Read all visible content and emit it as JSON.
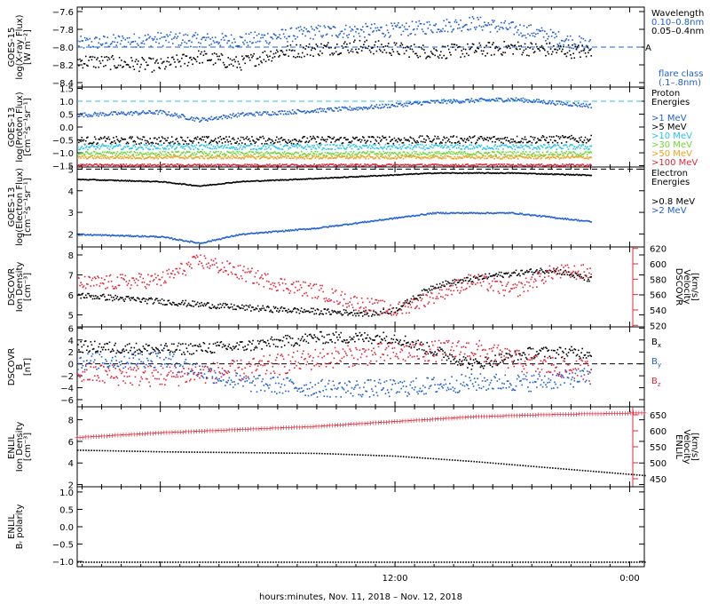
{
  "colors": {
    "black": "#000000",
    "blue": "#1f5fd1",
    "cyan": "#27c3e8",
    "green": "#6fd43a",
    "orange": "#e8a21d",
    "red": "#e0283c",
    "darkred": "#c81e28"
  },
  "chart_data": {
    "type": "scatter",
    "xlabel": "hours:minutes, Nov. 11, 2018 – Nov. 12, 2018",
    "x_ticks": [
      "12:00",
      "0:00"
    ],
    "xlim_hours": [
      -4.25,
      24.75
    ],
    "data_end_hours": 22.0,
    "panels": [
      {
        "id": "goes15-xray",
        "ylabel": [
          "GOES-15",
          "log(X-ray Flux)",
          "[W m⁻²]"
        ],
        "ylim": [
          -8.45,
          -7.55
        ],
        "yticks": [
          -8.4,
          -8.2,
          -8.0,
          -7.8,
          -7.6
        ],
        "ytick_labels": [
          "−8.4",
          "−8.2",
          "−8.0",
          "−7.8",
          "−7.6"
        ],
        "legend_title": "Wavelength",
        "series": [
          {
            "name": "0.10–0.8nm",
            "color": "blue",
            "knots": [
              [
                -4,
                -7.95
              ],
              [
                0,
                -7.9
              ],
              [
                4,
                -7.92
              ],
              [
                8,
                -7.82
              ],
              [
                12,
                -7.8
              ],
              [
                16,
                -7.72
              ],
              [
                19,
                -7.82
              ],
              [
                22,
                -7.98
              ]
            ],
            "scatter": 0.08
          },
          {
            "name": "0.05–0.4nm",
            "color": "black",
            "knots": [
              [
                -4,
                -8.15
              ],
              [
                0,
                -8.2
              ],
              [
                2,
                -8.1
              ],
              [
                4,
                -8.18
              ],
              [
                6,
                -8.05
              ],
              [
                10,
                -7.98
              ],
              [
                14,
                -8.05
              ],
              [
                18,
                -8.0
              ],
              [
                22,
                -8.05
              ]
            ],
            "scatter": 0.08
          }
        ],
        "reference_line": {
          "value": -8.0,
          "label": "A",
          "color": "blue"
        },
        "note": "flare class\n(.1–.8nm)"
      },
      {
        "id": "goes13-proton",
        "ylabel": [
          "GOES-13",
          "log(Proton Flux)",
          "[cm⁻²s⁻¹sr⁻¹]"
        ],
        "ylim": [
          -1.55,
          1.55
        ],
        "yticks": [
          -1.5,
          -1.0,
          -0.5,
          0.0,
          0.5,
          1.0,
          1.5
        ],
        "ytick_labels": [
          "−1.5",
          "−1.0",
          "−0.5",
          "0.0",
          "0.5",
          "1.0",
          "1.5"
        ],
        "legend_title": "Proton\nEnergies",
        "series": [
          {
            "name": ">1 MeV",
            "color": "blue",
            "knots": [
              [
                -4,
                0.5
              ],
              [
                0,
                0.6
              ],
              [
                2,
                0.3
              ],
              [
                4,
                0.5
              ],
              [
                10,
                0.75
              ],
              [
                14,
                1.0
              ],
              [
                18,
                1.1
              ],
              [
                22,
                0.85
              ]
            ],
            "scatter": 0.08
          },
          {
            "name": ">5 MeV",
            "color": "black",
            "knots": [
              [
                -4,
                -0.5
              ],
              [
                22,
                -0.45
              ]
            ],
            "scatter": 0.15
          },
          {
            "name": ">10 MeV",
            "color": "cyan",
            "knots": [
              [
                -4,
                -0.75
              ],
              [
                22,
                -0.75
              ]
            ],
            "scatter": 0.1
          },
          {
            "name": ">30 MeV",
            "color": "green",
            "knots": [
              [
                -4,
                -1.0
              ],
              [
                22,
                -1.0
              ]
            ],
            "scatter": 0.08
          },
          {
            "name": ">50 MeV",
            "color": "orange",
            "knots": [
              [
                -4,
                -1.15
              ],
              [
                22,
                -1.15
              ]
            ],
            "scatter": 0.06
          },
          {
            "name": ">100 MeV",
            "color": "red",
            "knots": [
              [
                -4,
                -1.45
              ],
              [
                22,
                -1.45
              ]
            ],
            "scatter": 0.04
          }
        ],
        "reference_line": {
          "value": 1.0,
          "color": "cyan"
        }
      },
      {
        "id": "goes13-electron",
        "ylabel": [
          "GOES-13",
          "log(Electron Flux)",
          "[cm⁻²s⁻¹sr⁻¹]"
        ],
        "ylim": [
          1.4,
          5.1
        ],
        "yticks": [
          2,
          3,
          4,
          5
        ],
        "ytick_labels": [
          "2",
          "3",
          "4",
          "5"
        ],
        "legend_title": "Electron\nEnergies",
        "series": [
          {
            "name": ">0.8 MeV",
            "color": "black",
            "knots": [
              [
                -4,
                4.55
              ],
              [
                0,
                4.45
              ],
              [
                2,
                4.25
              ],
              [
                4,
                4.45
              ],
              [
                8,
                4.6
              ],
              [
                14,
                4.85
              ],
              [
                18,
                4.85
              ],
              [
                22,
                4.75
              ]
            ],
            "scatter": 0.02
          },
          {
            "name": ">2 MeV",
            "color": "blue",
            "knots": [
              [
                -4,
                2.0
              ],
              [
                0,
                1.9
              ],
              [
                2,
                1.6
              ],
              [
                4,
                2.0
              ],
              [
                8,
                2.3
              ],
              [
                14,
                3.0
              ],
              [
                18,
                3.0
              ],
              [
                22,
                2.6
              ]
            ],
            "scatter": 0.03
          }
        ],
        "reference_line": {
          "value": 5.0,
          "color": "black"
        }
      },
      {
        "id": "dscovr-plasma",
        "ylabel": [
          "DSCOVR",
          "Ion Density",
          "[cm⁻³]"
        ],
        "ylim": [
          4.4,
          8.4
        ],
        "yticks": [
          5,
          6,
          7,
          8
        ],
        "ytick_labels": [
          "5",
          "6",
          "7",
          "8"
        ],
        "right_ylabel": [
          "DSCOVR",
          "Velocity",
          "[km/s]"
        ],
        "right_ylim": [
          518,
          622
        ],
        "right_yticks": [
          520,
          540,
          560,
          580,
          600,
          620
        ],
        "right_ytick_labels": [
          "520",
          "540",
          "560",
          "580",
          "600",
          "620"
        ],
        "series": [
          {
            "name": "density",
            "color": "black",
            "knots": [
              [
                -4,
                6.0
              ],
              [
                0,
                5.7
              ],
              [
                4,
                5.4
              ],
              [
                8,
                5.2
              ],
              [
                11,
                5.1
              ],
              [
                12,
                5.3
              ],
              [
                14,
                6.5
              ],
              [
                17,
                7.0
              ],
              [
                20,
                7.3
              ],
              [
                22,
                6.8
              ]
            ],
            "scatter": 0.15
          },
          {
            "name": "velocity",
            "color": "red",
            "axis": "right",
            "knots": [
              [
                -4,
                575
              ],
              [
                0,
                580
              ],
              [
                2,
                605
              ],
              [
                4,
                590
              ],
              [
                6,
                575
              ],
              [
                8,
                565
              ],
              [
                10,
                550
              ],
              [
                12,
                540
              ],
              [
                14,
                560
              ],
              [
                16,
                580
              ],
              [
                18,
                565
              ],
              [
                20,
                590
              ],
              [
                22,
                590
              ]
            ],
            "scatter": 10
          }
        ]
      },
      {
        "id": "dscovr-mag",
        "ylabel": [
          "DSCOVR",
          "B",
          "[nT]"
        ],
        "ylim": [
          -7.2,
          6.2
        ],
        "yticks": [
          -6,
          -4,
          -2,
          0,
          2,
          4,
          6
        ],
        "ytick_labels": [
          "−6",
          "−4",
          "−2",
          "0",
          "2",
          "4",
          "6"
        ],
        "legend_title": "",
        "series": [
          {
            "name": "Bx",
            "label_main": "B",
            "label_sub": "x",
            "color": "black",
            "knots": [
              [
                -4,
                3.0
              ],
              [
                0,
                2.5
              ],
              [
                4,
                3.0
              ],
              [
                8,
                4.5
              ],
              [
                12,
                4.5
              ],
              [
                16,
                0.0
              ],
              [
                19,
                2.0
              ],
              [
                22,
                2.0
              ]
            ],
            "scatter": 1.0
          },
          {
            "name": "By",
            "label_main": "B",
            "label_sub": "y",
            "color": "blue",
            "knots": [
              [
                -4,
                0.5
              ],
              [
                0,
                1.0
              ],
              [
                4,
                -3.0
              ],
              [
                8,
                -4.0
              ],
              [
                12,
                -4.0
              ],
              [
                16,
                -3.0
              ],
              [
                19,
                -3.0
              ],
              [
                22,
                -2.0
              ]
            ],
            "scatter": 1.5
          },
          {
            "name": "Bz",
            "label_main": "B",
            "label_sub": "z",
            "color": "red",
            "knots": [
              [
                -4,
                -1.5
              ],
              [
                0,
                -2.0
              ],
              [
                4,
                -1.0
              ],
              [
                8,
                1.0
              ],
              [
                12,
                2.0
              ],
              [
                16,
                2.5
              ],
              [
                19,
                0.0
              ],
              [
                22,
                -1.0
              ]
            ],
            "scatter": 1.8
          }
        ],
        "reference_line": {
          "value": 0,
          "color": "black"
        }
      },
      {
        "id": "enlil-plasma",
        "ylabel": [
          "ENLIL",
          "Ion Density",
          "[cm⁻³]"
        ],
        "ylim": [
          1.8,
          9.2
        ],
        "yticks": [
          2,
          4,
          6,
          8
        ],
        "ytick_labels": [
          "2",
          "4",
          "6",
          "8"
        ],
        "right_ylabel": [
          "ENLIL",
          "Velocity",
          "[km/s]"
        ],
        "right_ylim": [
          425,
          675
        ],
        "right_yticks": [
          450,
          500,
          550,
          600,
          650
        ],
        "right_ytick_labels": [
          "450",
          "500",
          "550",
          "600",
          "650"
        ],
        "series": [
          {
            "name": "density",
            "color": "black",
            "knots": [
              [
                -4.25,
                5.25
              ],
              [
                0,
                5.1
              ],
              [
                8,
                4.95
              ],
              [
                12,
                4.7
              ],
              [
                16,
                4.2
              ],
              [
                20,
                3.6
              ],
              [
                24.75,
                2.9
              ]
            ],
            "scatter": 0,
            "extent": "full"
          },
          {
            "name": "velocity",
            "color": "red",
            "axis": "right",
            "knots": [
              [
                -4.25,
                580
              ],
              [
                0,
                595
              ],
              [
                8,
                615
              ],
              [
                12,
                630
              ],
              [
                16,
                645
              ],
              [
                20,
                652
              ],
              [
                24.75,
                657
              ]
            ],
            "scatter": 0,
            "extent": "full"
          }
        ]
      },
      {
        "id": "enlil-polarity",
        "ylabel": [
          "ENLIL",
          "Bᵣ polarity"
        ],
        "ylim": [
          -1.15,
          1.15
        ],
        "yticks": [
          -1.0,
          -0.5,
          0.0,
          0.5,
          1.0
        ],
        "ytick_labels": [
          "−1.0",
          "−0.5",
          "0.0",
          "0.5",
          "1.0"
        ],
        "series": [
          {
            "name": "polarity",
            "color": "black",
            "knots": [
              [
                -4.25,
                -1.0
              ],
              [
                24.75,
                -1.0
              ]
            ],
            "scatter": 0,
            "extent": "full"
          }
        ]
      }
    ]
  }
}
